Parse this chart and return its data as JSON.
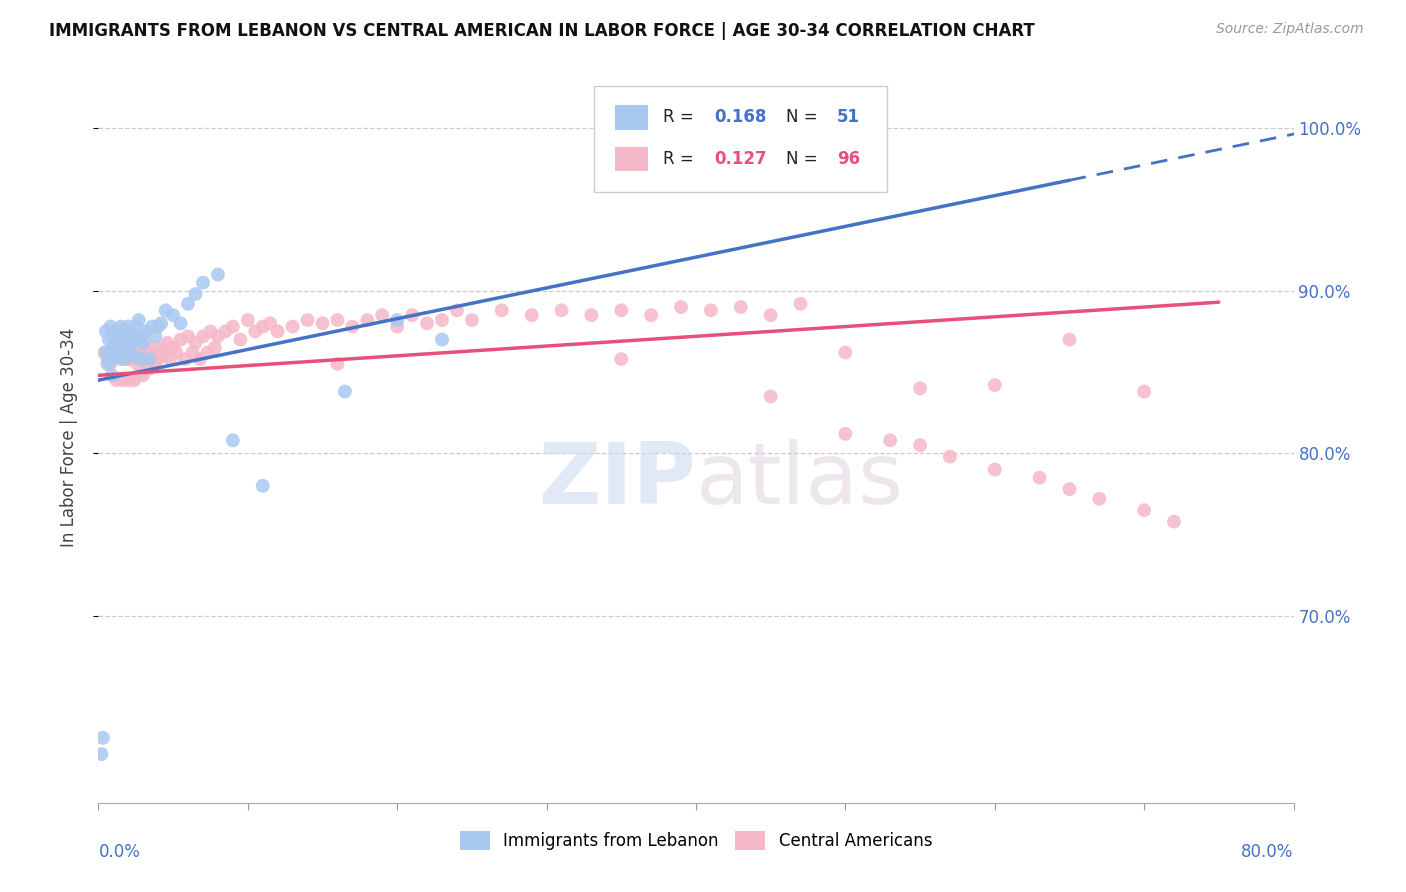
{
  "title": "IMMIGRANTS FROM LEBANON VS CENTRAL AMERICAN IN LABOR FORCE | AGE 30-34 CORRELATION CHART",
  "source": "Source: ZipAtlas.com",
  "ylabel": "In Labor Force | Age 30-34",
  "x_min": 0.0,
  "x_max": 0.8,
  "y_min": 0.585,
  "y_max": 1.035,
  "y_tick_positions": [
    0.7,
    0.8,
    0.9,
    1.0
  ],
  "y_tick_labels": [
    "70.0%",
    "80.0%",
    "90.0%",
    "100.0%"
  ],
  "legend_R1": "0.168",
  "legend_N1": "51",
  "legend_R2": "0.127",
  "legend_N2": "96",
  "color_blue": "#a8c8f0",
  "color_pink": "#f5b8c8",
  "color_blue_line": "#4472c4",
  "color_pink_line": "#e8507a",
  "color_blue_text": "#4472c4",
  "color_pink_text": "#e8507a",
  "watermark": "ZIPatlas",
  "lebanon_x": [
    0.002,
    0.003,
    0.005,
    0.005,
    0.006,
    0.007,
    0.008,
    0.008,
    0.009,
    0.01,
    0.01,
    0.011,
    0.012,
    0.013,
    0.014,
    0.015,
    0.015,
    0.016,
    0.017,
    0.018,
    0.018,
    0.019,
    0.02,
    0.021,
    0.022,
    0.023,
    0.024,
    0.025,
    0.026,
    0.027,
    0.028,
    0.029,
    0.03,
    0.032,
    0.034,
    0.036,
    0.038,
    0.04,
    0.042,
    0.045,
    0.05,
    0.055,
    0.06,
    0.065,
    0.07,
    0.08,
    0.09,
    0.11,
    0.165,
    0.2,
    0.23
  ],
  "lebanon_y": [
    0.615,
    0.625,
    0.862,
    0.875,
    0.855,
    0.87,
    0.878,
    0.862,
    0.848,
    0.875,
    0.858,
    0.868,
    0.872,
    0.86,
    0.875,
    0.878,
    0.862,
    0.87,
    0.858,
    0.875,
    0.868,
    0.872,
    0.878,
    0.862,
    0.868,
    0.872,
    0.86,
    0.878,
    0.87,
    0.882,
    0.858,
    0.872,
    0.868,
    0.875,
    0.858,
    0.878,
    0.872,
    0.878,
    0.88,
    0.888,
    0.885,
    0.88,
    0.892,
    0.898,
    0.905,
    0.91,
    0.808,
    0.78,
    0.838,
    0.882,
    0.87
  ],
  "central_x": [
    0.004,
    0.006,
    0.008,
    0.01,
    0.012,
    0.014,
    0.015,
    0.016,
    0.018,
    0.019,
    0.02,
    0.021,
    0.022,
    0.024,
    0.025,
    0.026,
    0.027,
    0.028,
    0.029,
    0.03,
    0.031,
    0.032,
    0.033,
    0.034,
    0.035,
    0.036,
    0.038,
    0.039,
    0.04,
    0.042,
    0.044,
    0.046,
    0.048,
    0.05,
    0.052,
    0.055,
    0.058,
    0.06,
    0.063,
    0.065,
    0.068,
    0.07,
    0.073,
    0.075,
    0.078,
    0.08,
    0.085,
    0.09,
    0.095,
    0.1,
    0.105,
    0.11,
    0.115,
    0.12,
    0.13,
    0.14,
    0.15,
    0.16,
    0.17,
    0.18,
    0.19,
    0.2,
    0.21,
    0.22,
    0.23,
    0.24,
    0.25,
    0.27,
    0.29,
    0.31,
    0.33,
    0.35,
    0.37,
    0.39,
    0.41,
    0.43,
    0.45,
    0.47,
    0.5,
    0.53,
    0.55,
    0.57,
    0.6,
    0.63,
    0.65,
    0.67,
    0.7,
    0.72,
    0.45,
    0.55,
    0.6,
    0.7,
    0.16,
    0.35,
    0.5,
    0.65
  ],
  "central_y": [
    0.862,
    0.858,
    0.855,
    0.868,
    0.845,
    0.862,
    0.858,
    0.845,
    0.862,
    0.858,
    0.845,
    0.858,
    0.862,
    0.845,
    0.862,
    0.855,
    0.848,
    0.858,
    0.862,
    0.848,
    0.865,
    0.855,
    0.858,
    0.852,
    0.865,
    0.862,
    0.855,
    0.862,
    0.858,
    0.865,
    0.86,
    0.868,
    0.858,
    0.865,
    0.862,
    0.87,
    0.858,
    0.872,
    0.862,
    0.868,
    0.858,
    0.872,
    0.862,
    0.875,
    0.865,
    0.872,
    0.875,
    0.878,
    0.87,
    0.882,
    0.875,
    0.878,
    0.88,
    0.875,
    0.878,
    0.882,
    0.88,
    0.882,
    0.878,
    0.882,
    0.885,
    0.878,
    0.885,
    0.88,
    0.882,
    0.888,
    0.882,
    0.888,
    0.885,
    0.888,
    0.885,
    0.888,
    0.885,
    0.89,
    0.888,
    0.89,
    0.885,
    0.892,
    0.812,
    0.808,
    0.805,
    0.798,
    0.79,
    0.785,
    0.778,
    0.772,
    0.765,
    0.758,
    0.835,
    0.84,
    0.842,
    0.838,
    0.855,
    0.858,
    0.862,
    0.87
  ]
}
